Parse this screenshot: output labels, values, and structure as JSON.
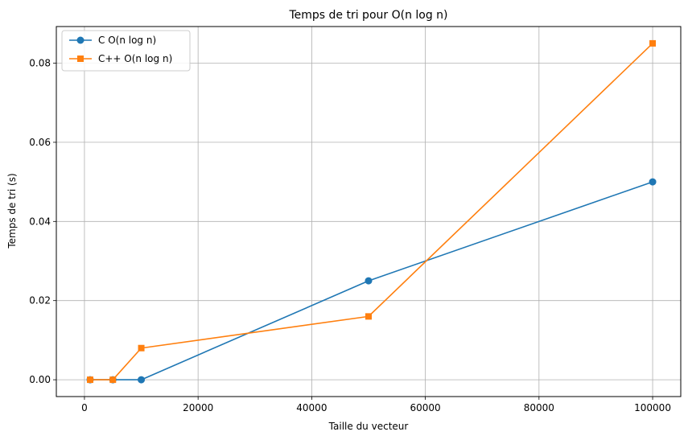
{
  "chart_data": {
    "type": "line",
    "title": "Temps de tri pour O(n log n)",
    "xlabel": "Taille du vecteur",
    "ylabel": "Temps de tri (s)",
    "xlim": [
      -4950,
      104950
    ],
    "ylim": [
      -0.00425,
      0.08925
    ],
    "xticks": [
      0,
      20000,
      40000,
      60000,
      80000,
      100000
    ],
    "xtick_labels": [
      "0",
      "20000",
      "40000",
      "60000",
      "80000",
      "100000"
    ],
    "yticks": [
      0.0,
      0.02,
      0.04,
      0.06,
      0.08
    ],
    "ytick_labels": [
      "0.00",
      "0.02",
      "0.04",
      "0.06",
      "0.08"
    ],
    "grid": true,
    "legend_position": "top-left",
    "series": [
      {
        "name": "C O(n log n)",
        "color": "#1f77b4",
        "marker": "circle",
        "x": [
          1000,
          5000,
          10000,
          50000,
          100000
        ],
        "y": [
          0.0,
          0.0,
          0.0,
          0.025,
          0.05
        ]
      },
      {
        "name": "C++ O(n log n)",
        "color": "#ff7f0e",
        "marker": "square",
        "x": [
          1000,
          5000,
          10000,
          50000,
          100000
        ],
        "y": [
          0.0,
          0.0,
          0.008,
          0.016,
          0.085
        ]
      }
    ]
  }
}
